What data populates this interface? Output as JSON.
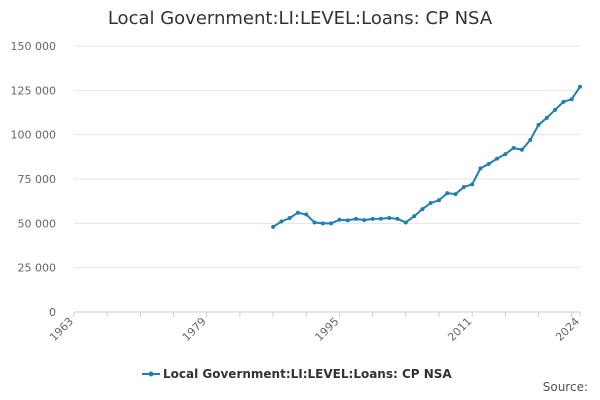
{
  "chart_data": {
    "type": "line",
    "title": "Local Government:LI:LEVEL:Loans: CP NSA",
    "xlabel": "",
    "ylabel": "",
    "xlim": [
      1963,
      2024
    ],
    "ylim": [
      0,
      150000
    ],
    "x_ticks": [
      1963,
      1979,
      1995,
      2011,
      2024
    ],
    "x_tick_labels": [
      "1963",
      "1979",
      "1995",
      "2011",
      "2024"
    ],
    "y_ticks": [
      0,
      25000,
      50000,
      75000,
      100000,
      125000,
      150000
    ],
    "y_tick_labels": [
      "0",
      "25 000",
      "50 000",
      "75 000",
      "100 000",
      "125 000",
      "150 000"
    ],
    "grid": "horizontal",
    "legend_position": "bottom",
    "series": [
      {
        "name": "Local Government:LI:LEVEL:Loans: CP NSA",
        "color": "#1f7fb4",
        "x": [
          1987,
          1988,
          1989,
          1990,
          1991,
          1992,
          1993,
          1994,
          1995,
          1996,
          1997,
          1998,
          1999,
          2000,
          2001,
          2002,
          2003,
          2004,
          2005,
          2006,
          2007,
          2008,
          2009,
          2010,
          2011,
          2012,
          2013,
          2014,
          2015,
          2016,
          2017,
          2018,
          2019,
          2020,
          2021,
          2022,
          2023,
          2024
        ],
        "values": [
          48000,
          51000,
          53000,
          56000,
          55000,
          50500,
          50000,
          50000,
          52000,
          51700,
          52500,
          51800,
          52500,
          52600,
          53000,
          52500,
          50500,
          54000,
          58000,
          61500,
          63000,
          67000,
          66500,
          70500,
          72000,
          81000,
          83500,
          86500,
          89000,
          92500,
          91500,
          97000,
          105500,
          109500,
          114000,
          118500,
          120000,
          127000
        ]
      }
    ]
  },
  "legend": {
    "label": "Local Government:LI:LEVEL:Loans: CP NSA"
  },
  "source": {
    "label": "Source:"
  }
}
